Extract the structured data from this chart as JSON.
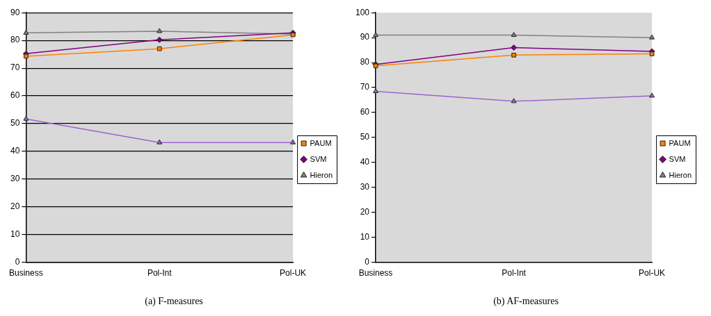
{
  "chart_data": [
    {
      "type": "line",
      "title": "(a) F-measures",
      "categories": [
        "Business",
        "Pol-Int",
        "Pol-UK"
      ],
      "ylim": [
        0,
        90
      ],
      "yticks": [
        0,
        10,
        20,
        30,
        40,
        50,
        60,
        70,
        80,
        90
      ],
      "grid": "y",
      "legend": "right",
      "series": [
        {
          "name": "PAUM",
          "color": "#ff8000",
          "marker": "square",
          "values": [
            74.3,
            77,
            82
          ]
        },
        {
          "name": "SVM",
          "color": "#800080",
          "marker": "diamond",
          "values": [
            75.2,
            80.2,
            82.7
          ]
        },
        {
          "name": "Hieron",
          "color": "#808080",
          "marker": "triangle",
          "values": [
            82.7,
            83.3,
            82.3
          ]
        },
        {
          "color": "#9966cc",
          "marker": "triangle",
          "values": [
            51.7,
            43.2,
            43.2
          ]
        }
      ]
    },
    {
      "type": "line",
      "title": "(b) AF-measures",
      "categories": [
        "Business",
        "Pol-Int",
        "Pol-UK"
      ],
      "ylim": [
        0,
        100
      ],
      "yticks": [
        0,
        10,
        20,
        30,
        40,
        50,
        60,
        70,
        80,
        90,
        100
      ],
      "grid": false,
      "legend": "right",
      "series": [
        {
          "name": "PAUM",
          "color": "#ff8000",
          "marker": "square",
          "values": [
            78.7,
            83,
            83.5
          ]
        },
        {
          "name": "SVM",
          "color": "#800080",
          "marker": "diamond",
          "values": [
            79.3,
            86,
            84.5
          ]
        },
        {
          "name": "Hieron",
          "color": "#808080",
          "marker": "triangle",
          "values": [
            91,
            91,
            90
          ]
        },
        {
          "color": "#9966cc",
          "marker": "triangle",
          "values": [
            68.5,
            64.5,
            66.7
          ]
        }
      ]
    }
  ]
}
